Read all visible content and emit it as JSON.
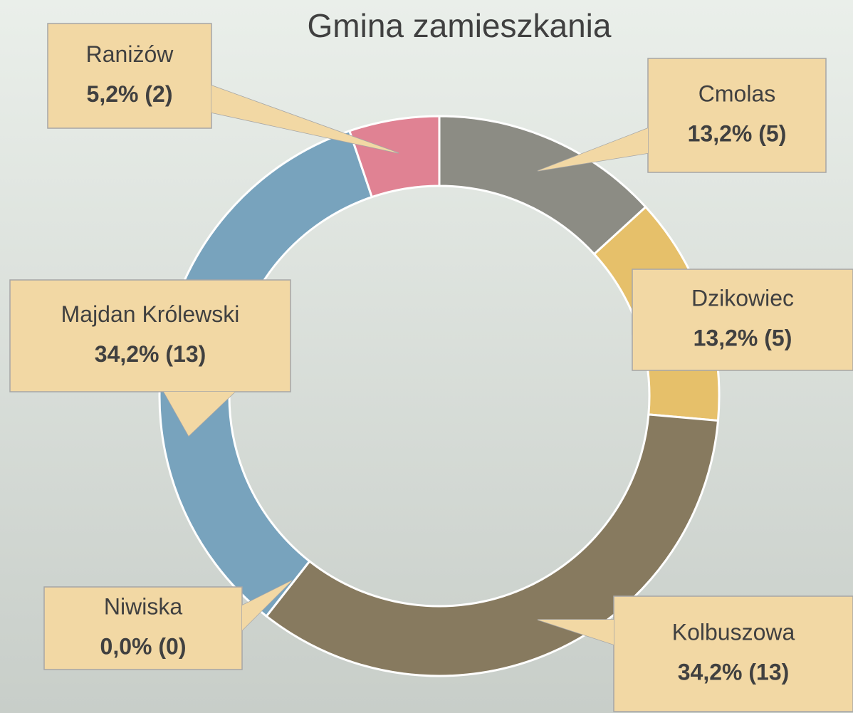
{
  "chart_data": {
    "type": "donut",
    "title": "Gmina zamieszkania",
    "categories": [
      "Cmolas",
      "Dzikowiec",
      "Kolbuszowa",
      "Niwiska",
      "Majdan Królewski",
      "Raniżów"
    ],
    "values": [
      13.2,
      13.2,
      34.2,
      0.0,
      34.2,
      5.2
    ],
    "counts": [
      5,
      5,
      13,
      0,
      13,
      2
    ],
    "value_labels": [
      "13,2% (5)",
      "13,2% (5)",
      "34,2% (13)",
      "0,0% (0)",
      "34,2% (13)",
      "5,2% (2)"
    ],
    "colors": [
      "#8c8c84",
      "#e6c06a",
      "#877a5f",
      "#a5a5a5",
      "#78a3bd",
      "#e08293"
    ]
  }
}
